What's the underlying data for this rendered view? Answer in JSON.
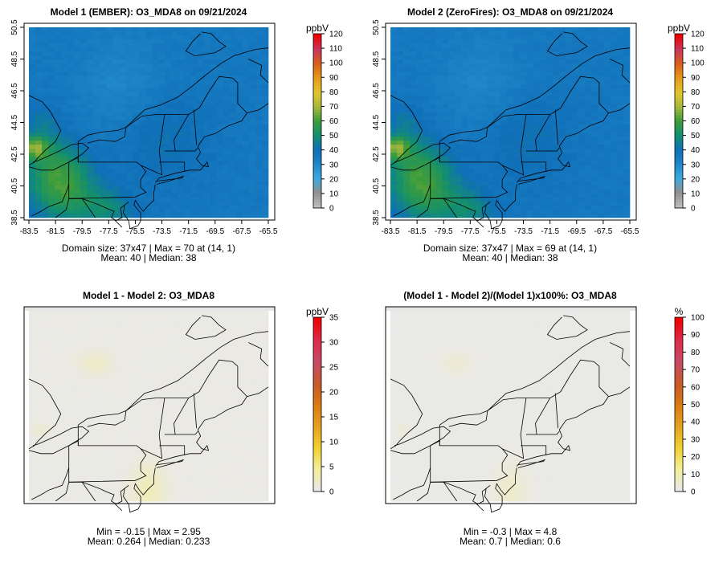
{
  "chart_data": [
    {
      "type": "heatmap",
      "title": "Model 1 (EMBER): O3_MDA8 on 09/21/2024",
      "x_ticks": [
        "-83.5",
        "-81.5",
        "-79.5",
        "-77.5",
        "-75.5",
        "-73.5",
        "-71.5",
        "-69.5",
        "-67.5",
        "-65.5"
      ],
      "y_ticks": [
        "38.5",
        "40.5",
        "42.5",
        "44.5",
        "46.5",
        "48.5",
        "50.5"
      ],
      "xlim": [
        -83.5,
        -65.5
      ],
      "ylim": [
        38.5,
        50.5
      ],
      "colorbar": {
        "unit": "ppbV",
        "ticks": [
          "0",
          "10",
          "20",
          "30",
          "40",
          "50",
          "60",
          "70",
          "80",
          "90",
          "100",
          "110",
          "120"
        ],
        "min": 0,
        "max": 120,
        "palette": "ozone"
      },
      "stats_line1": "Domain size: 37x47 | Max = 70 at (14, 1)",
      "stats_line2": "Mean: 40 |  Median: 38",
      "field": {
        "type": "ozone",
        "mean": 40,
        "max": 70
      }
    },
    {
      "type": "heatmap",
      "title": "Model 2 (ZeroFires): O3_MDA8 on 09/21/2024",
      "x_ticks": [
        "-83.5",
        "-81.5",
        "-79.5",
        "-77.5",
        "-75.5",
        "-73.5",
        "-71.5",
        "-69.5",
        "-67.5",
        "-65.5"
      ],
      "y_ticks": [
        "38.5",
        "40.5",
        "42.5",
        "44.5",
        "46.5",
        "48.5",
        "50.5"
      ],
      "xlim": [
        -83.5,
        -65.5
      ],
      "ylim": [
        38.5,
        50.5
      ],
      "colorbar": {
        "unit": "ppbV",
        "ticks": [
          "0",
          "10",
          "20",
          "30",
          "40",
          "50",
          "60",
          "70",
          "80",
          "90",
          "100",
          "110",
          "120"
        ],
        "min": 0,
        "max": 120,
        "palette": "ozone"
      },
      "stats_line1": "Domain size: 37x47 | Max = 69 at (14, 1)",
      "stats_line2": "Mean: 40 |  Median: 38",
      "field": {
        "type": "ozone",
        "mean": 40,
        "max": 69
      }
    },
    {
      "type": "heatmap",
      "title": "Model 1 - Model 2: O3_MDA8",
      "colorbar": {
        "unit": "ppbV",
        "ticks": [
          "0",
          "5",
          "10",
          "15",
          "20",
          "25",
          "30",
          "35"
        ],
        "min": 0,
        "max": 35,
        "palette": "diff"
      },
      "stats_line1": "Min = -0.15 | Max = 2.95",
      "stats_line2": "Mean: 0.264 |  Median: 0.233",
      "field": {
        "type": "diff",
        "min": -0.15,
        "max": 2.95
      }
    },
    {
      "type": "heatmap",
      "title": "(Model 1 - Model 2)/(Model 1)x100%: O3_MDA8",
      "colorbar": {
        "unit": "%",
        "ticks": [
          "0",
          "10",
          "20",
          "30",
          "40",
          "50",
          "60",
          "70",
          "80",
          "90",
          "100"
        ],
        "min": 0,
        "max": 100,
        "palette": "diff"
      },
      "stats_line1": "Min = -0.3 | Max = 4.8",
      "stats_line2": "Mean: 0.7 |  Median: 0.6",
      "field": {
        "type": "diff",
        "min": -0.3,
        "max": 4.8
      }
    }
  ],
  "colors": {
    "ozone_palette": [
      "#bdbdbd",
      "#8f8f8f",
      "#3da8e0",
      "#1f86c8",
      "#0f6fb8",
      "#138f6e",
      "#3c9c3c",
      "#a7b83c",
      "#e2c52c",
      "#e59a1b",
      "#d9601a",
      "#c8365e",
      "#f00000"
    ],
    "diff_palette": [
      "#e9e9e9",
      "#f3ee9a",
      "#f1d12c",
      "#e5a020",
      "#d97a12",
      "#c65a2a",
      "#c84a66",
      "#dd2a4a",
      "#f00000"
    ],
    "outside_fill": "#e6e6e6",
    "map_lines": "#000000"
  }
}
